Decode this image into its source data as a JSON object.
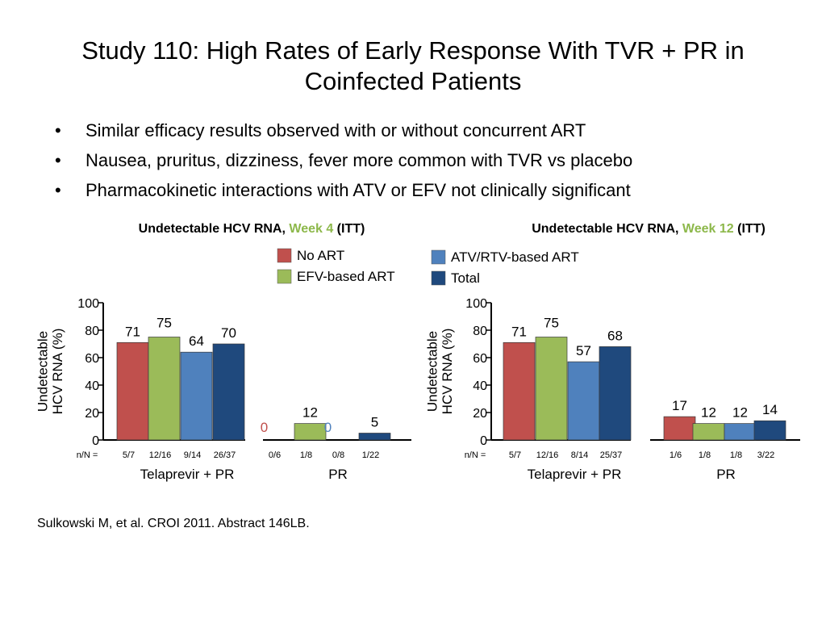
{
  "title": "Study 110: High Rates of Early Response With TVR + PR in Coinfected Patients",
  "bullets": [
    "Similar efficacy results observed with or without concurrent ART",
    "Nausea, pruritus, dizziness, fever more common with TVR vs placebo",
    "Pharmacokinetic interactions with ATV or EFV not clinically significant"
  ],
  "citation": "Sulkowski M, et al. CROI 2011. Abstract 146LB.",
  "legend": [
    {
      "name": "No ART",
      "color": "#C0504D"
    },
    {
      "name": "EFV-based ART",
      "color": "#9BBB59"
    },
    {
      "name": "ATV/RTV-based ART",
      "color": "#4F81BD"
    },
    {
      "name": "Total",
      "color": "#1F497D"
    }
  ],
  "colors": {
    "accent_green": "#8DB84B",
    "label_red": "#C0504D",
    "label_blue": "#4F81BD"
  },
  "chart_data": [
    {
      "type": "bar",
      "title_parts": [
        "Undetectable HCV RNA, ",
        "Week 4",
        " (ITT)"
      ],
      "ylabel": "Undetectable HCV RNA (%)",
      "ylim": [
        0,
        100
      ],
      "yticks": [
        "0",
        "20",
        "40",
        "60",
        "80",
        "100"
      ],
      "nn_label": "n/N =",
      "groups": [
        {
          "name": "Telaprevir + PR",
          "values": [
            71,
            75,
            64,
            70
          ],
          "labels": [
            "71",
            "75",
            "64",
            "70"
          ],
          "nN": [
            "5/7",
            "12/16",
            "9/14",
            "26/37"
          ]
        },
        {
          "name": "PR",
          "values": [
            0,
            12,
            0,
            5
          ],
          "labels": [
            "0",
            "12",
            "0",
            "5"
          ],
          "nN": [
            "0/6",
            "1/8",
            "0/8",
            "1/22"
          ]
        }
      ]
    },
    {
      "type": "bar",
      "title_parts": [
        "Undetectable HCV RNA, ",
        "Week 12",
        " (ITT)"
      ],
      "ylabel": "Undetectable HCV RNA (%)",
      "ylim": [
        0,
        100
      ],
      "yticks": [
        "0",
        "20",
        "40",
        "60",
        "80",
        "100"
      ],
      "nn_label": "n/N =",
      "groups": [
        {
          "name": "Telaprevir + PR",
          "values": [
            71,
            75,
            57,
            68
          ],
          "labels": [
            "71",
            "75",
            "57",
            "68"
          ],
          "nN": [
            "5/7",
            "12/16",
            "8/14",
            "25/37"
          ]
        },
        {
          "name": "PR",
          "values": [
            17,
            12,
            12,
            14
          ],
          "labels": [
            "17",
            "12",
            "12",
            "14"
          ],
          "nN": [
            "1/6",
            "1/8",
            "1/8",
            "3/22"
          ]
        }
      ]
    }
  ]
}
